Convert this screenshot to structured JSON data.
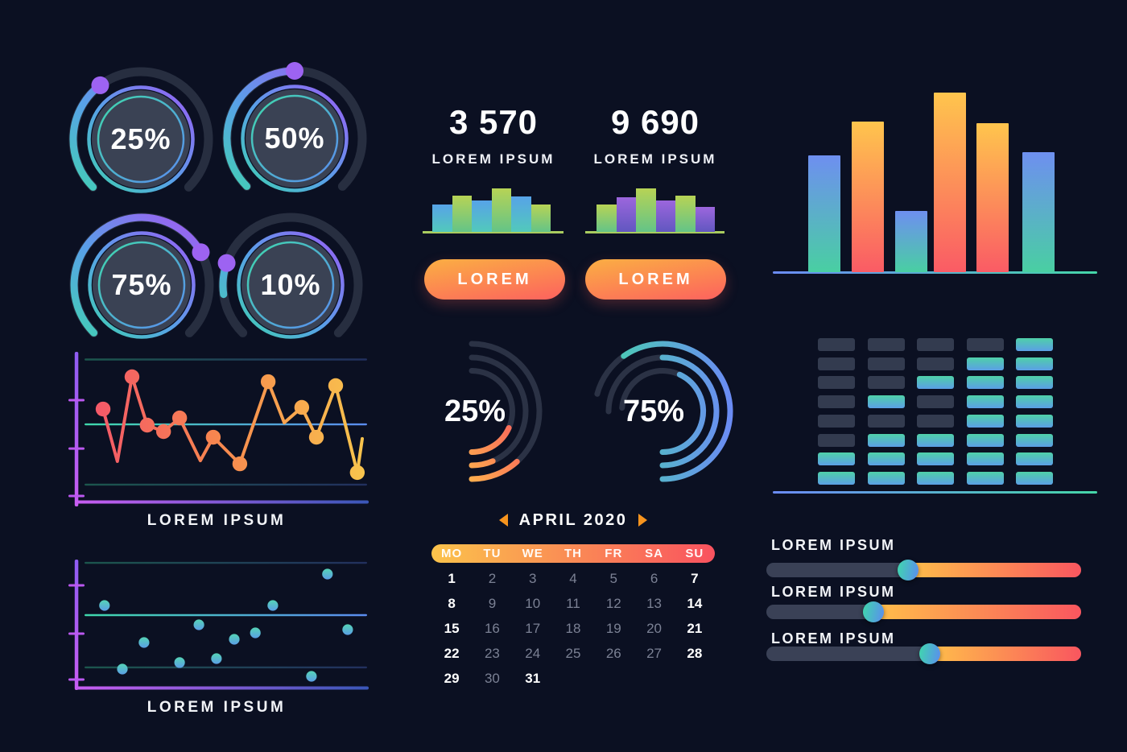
{
  "colors": {
    "background": "#0b1022",
    "teal": "#3fd8ac",
    "blue": "#5b8cf0",
    "purple": "#9d5ff2",
    "magenta": "#c45bf2",
    "warm_yellow": "#ffc04a",
    "warm_red": "#f9565f",
    "panel_circle": "#3a4254",
    "track_dark": "#272e40",
    "muted_text": "#7b8194",
    "arrow_orange": "#f7941e",
    "mini_underline_green": "#a9cb5f"
  },
  "gauges": {
    "items": [
      {
        "value": "25%",
        "percent": 25,
        "arc": [
          225,
          323
        ]
      },
      {
        "value": "50%",
        "percent": 50,
        "arc": [
          225,
          360
        ]
      },
      {
        "value": "75%",
        "percent": 75,
        "arc": [
          225,
          421
        ]
      },
      {
        "value": "10%",
        "percent": 10,
        "arc": [
          262,
          289
        ]
      }
    ]
  },
  "stat_cards": {
    "items": [
      {
        "value": "3 570",
        "label": "LOREM IPSUM",
        "button_label": "LOREM"
      },
      {
        "value": "9 690",
        "label": "LOREM IPSUM",
        "button_label": "LOREM"
      }
    ]
  },
  "chart_data": [
    {
      "id": "stat-mini-bars-1",
      "type": "bar",
      "values": [
        63,
        83,
        72,
        100,
        81,
        63
      ],
      "bar_colors": [
        "blue",
        "green",
        "blue",
        "green",
        "blue",
        "green"
      ]
    },
    {
      "id": "stat-mini-bars-2",
      "type": "bar",
      "values": [
        63,
        80,
        100,
        72,
        83,
        57
      ],
      "bar_colors": [
        "green",
        "purple",
        "green",
        "purple",
        "green",
        "purple"
      ]
    },
    {
      "id": "main-bar-chart",
      "type": "bar",
      "values": [
        65,
        84,
        34,
        100,
        83,
        67
      ],
      "bar_colors": [
        "cool",
        "warm",
        "cool",
        "warm",
        "warm",
        "cool"
      ],
      "ylim": [
        0,
        100
      ]
    },
    {
      "id": "line-chart",
      "type": "line",
      "title": "LOREM IPSUM",
      "points": [
        [
          9.1,
          62.6
        ],
        [
          14.0,
          28.4
        ],
        [
          19.0,
          83.7
        ],
        [
          24.2,
          52.1
        ],
        [
          29.8,
          47.9
        ],
        [
          35.3,
          56.8
        ],
        [
          42.4,
          28.9
        ],
        [
          46.8,
          44.2
        ],
        [
          55.9,
          26.8
        ],
        [
          65.6,
          80.5
        ],
        [
          71.1,
          53.7
        ],
        [
          77.1,
          63.7
        ],
        [
          82.1,
          44.2
        ],
        [
          88.7,
          77.9
        ],
        [
          96.1,
          21.1
        ],
        [
          97.8,
          43.2
        ]
      ],
      "markers": [
        1,
        0,
        1,
        1,
        1,
        1,
        0,
        1,
        1,
        1,
        0,
        1,
        1,
        1,
        1,
        0
      ],
      "gridlines_y": [
        95,
        52.6,
        13.2
      ],
      "ticks_y": [
        68.4,
        36.8,
        5.8
      ],
      "xlim": [
        0,
        100
      ],
      "ylim": [
        0,
        100
      ]
    },
    {
      "id": "scatter-chart",
      "type": "scatter",
      "title": "LOREM IPSUM",
      "points": [
        [
          9.6,
          65.2
        ],
        [
          15.7,
          15.2
        ],
        [
          23.1,
          36.1
        ],
        [
          35.3,
          20.3
        ],
        [
          41.9,
          50.0
        ],
        [
          47.9,
          23.4
        ],
        [
          54.0,
          38.6
        ],
        [
          61.2,
          43.7
        ],
        [
          67.2,
          65.2
        ],
        [
          80.4,
          9.5
        ],
        [
          85.9,
          89.9
        ],
        [
          92.8,
          46.2
        ]
      ],
      "gridlines_y": [
        98.7,
        57.6,
        16.5
      ],
      "ticks_y": [
        81,
        43,
        7
      ],
      "xlim": [
        0,
        100
      ],
      "ylim": [
        0,
        100
      ]
    },
    {
      "id": "radial-25",
      "type": "radial-arcs",
      "value": "25%",
      "palette": "warm",
      "rings": [
        {
          "track": [
            0,
            180
          ],
          "progress": [
            138,
            180
          ]
        },
        {
          "track": [
            0,
            180
          ],
          "progress": [
            157,
            180
          ]
        },
        {
          "track": [
            0,
            180
          ],
          "progress": [
            114,
            180
          ]
        }
      ]
    },
    {
      "id": "radial-75",
      "type": "radial-arcs",
      "value": "75%",
      "palette": "cool",
      "rings": [
        {
          "track": [
            -75,
            180
          ],
          "progress": [
            -35,
            180
          ]
        },
        {
          "track": [
            -90,
            180
          ],
          "progress": [
            0,
            180
          ]
        },
        {
          "track": [
            -85,
            180
          ],
          "progress": [
            25,
            180
          ]
        }
      ]
    },
    {
      "id": "equalizer",
      "type": "heatmap",
      "columns": [
        [
          0,
          0,
          0,
          0,
          0,
          0,
          1,
          1
        ],
        [
          0,
          0,
          0,
          1,
          0,
          1,
          1,
          1
        ],
        [
          0,
          0,
          1,
          0,
          0,
          1,
          1,
          1
        ],
        [
          0,
          1,
          1,
          1,
          1,
          1,
          1,
          1
        ],
        [
          1,
          1,
          1,
          1,
          1,
          1,
          1,
          1
        ]
      ]
    }
  ],
  "calendar": {
    "title": "APRIL 2020",
    "prev_icon": "left-arrow",
    "next_icon": "right-arrow",
    "weekdays": [
      "MO",
      "TU",
      "WE",
      "TH",
      "FR",
      "SA",
      "SU"
    ],
    "weeks": [
      [
        {
          "day": "1",
          "highlighted": true
        },
        {
          "day": "2",
          "highlighted": false
        },
        {
          "day": "3",
          "highlighted": false
        },
        {
          "day": "4",
          "highlighted": false
        },
        {
          "day": "5",
          "highlighted": false
        },
        {
          "day": "6",
          "highlighted": false
        },
        {
          "day": "7",
          "highlighted": true
        }
      ],
      [
        {
          "day": "8",
          "highlighted": true
        },
        {
          "day": "9",
          "highlighted": false
        },
        {
          "day": "10",
          "highlighted": false
        },
        {
          "day": "11",
          "highlighted": false
        },
        {
          "day": "12",
          "highlighted": false
        },
        {
          "day": "13",
          "highlighted": false
        },
        {
          "day": "14",
          "highlighted": true
        }
      ],
      [
        {
          "day": "15",
          "highlighted": true
        },
        {
          "day": "16",
          "highlighted": false
        },
        {
          "day": "17",
          "highlighted": false
        },
        {
          "day": "18",
          "highlighted": false
        },
        {
          "day": "19",
          "highlighted": false
        },
        {
          "day": "20",
          "highlighted": false
        },
        {
          "day": "21",
          "highlighted": true
        }
      ],
      [
        {
          "day": "22",
          "highlighted": true
        },
        {
          "day": "23",
          "highlighted": false
        },
        {
          "day": "24",
          "highlighted": false
        },
        {
          "day": "25",
          "highlighted": false
        },
        {
          "day": "26",
          "highlighted": false
        },
        {
          "day": "27",
          "highlighted": false
        },
        {
          "day": "28",
          "highlighted": true
        }
      ],
      [
        {
          "day": "29",
          "highlighted": true
        },
        {
          "day": "30",
          "highlighted": false
        },
        {
          "day": "31",
          "highlighted": true
        }
      ]
    ]
  },
  "sliders": {
    "items": [
      {
        "label": "LOREM IPSUM",
        "value": 0.45
      },
      {
        "label": "LOREM IPSUM",
        "value": 0.34
      },
      {
        "label": "LOREM IPSUM",
        "value": 0.52
      }
    ]
  }
}
